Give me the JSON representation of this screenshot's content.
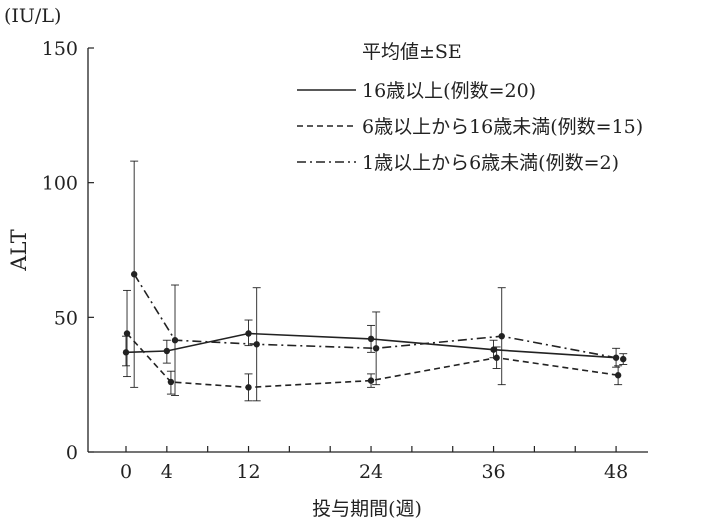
{
  "chart_data": {
    "type": "line",
    "unit_label": "(IU/L)",
    "ylabel": "ALT",
    "xlabel": "投与期間(週)",
    "legend_title": "平均値±SE",
    "x_ticks": [
      0,
      4,
      12,
      24,
      36,
      48
    ],
    "y_ticks": [
      0,
      50,
      100,
      150
    ],
    "xlim": [
      -2.5,
      52
    ],
    "ylim": [
      0,
      150
    ],
    "grid": false,
    "legend_position": "top-right",
    "series": [
      {
        "name": "16歳以上(例数=20)",
        "style": "solid",
        "points": [
          {
            "x": 0,
            "y": 37,
            "lo": 32,
            "hi": 43
          },
          {
            "x": 4,
            "y": 37.5,
            "lo": 33,
            "hi": 41.5
          },
          {
            "x": 12,
            "y": 44,
            "lo": 39.5,
            "hi": 49
          },
          {
            "x": 24,
            "y": 42,
            "lo": 37,
            "hi": 47
          },
          {
            "x": 36,
            "y": 38,
            "lo": 35,
            "hi": 41.5
          },
          {
            "x": 48,
            "y": 35,
            "lo": 31.5,
            "hi": 38.5
          }
        ]
      },
      {
        "name": "6歳以上から16歳未満(例数=15)",
        "style": "dashed",
        "points": [
          {
            "x": 0.1,
            "y": 44,
            "lo": 28,
            "hi": 60
          },
          {
            "x": 4.4,
            "y": 26,
            "lo": 21.5,
            "hi": 30
          },
          {
            "x": 12,
            "y": 24,
            "lo": 19,
            "hi": 29
          },
          {
            "x": 24,
            "y": 26.5,
            "lo": 24,
            "hi": 29
          },
          {
            "x": 36.3,
            "y": 35,
            "lo": 31,
            "hi": 39
          },
          {
            "x": 48.2,
            "y": 28.5,
            "lo": 25,
            "hi": 32
          }
        ]
      },
      {
        "name": "1歳以上から6歳未満(例数=2)",
        "style": "dashdot",
        "points": [
          {
            "x": 0.8,
            "y": 66,
            "lo": 24,
            "hi": 108
          },
          {
            "x": 4.8,
            "y": 41.5,
            "lo": 21,
            "hi": 62
          },
          {
            "x": 12.8,
            "y": 40,
            "lo": 19,
            "hi": 61
          },
          {
            "x": 24.5,
            "y": 38.5,
            "lo": 25,
            "hi": 52
          },
          {
            "x": 36.8,
            "y": 43,
            "lo": 25,
            "hi": 61
          },
          {
            "x": 48.7,
            "y": 34.5,
            "lo": 32.5,
            "hi": 36.5
          }
        ]
      }
    ]
  }
}
